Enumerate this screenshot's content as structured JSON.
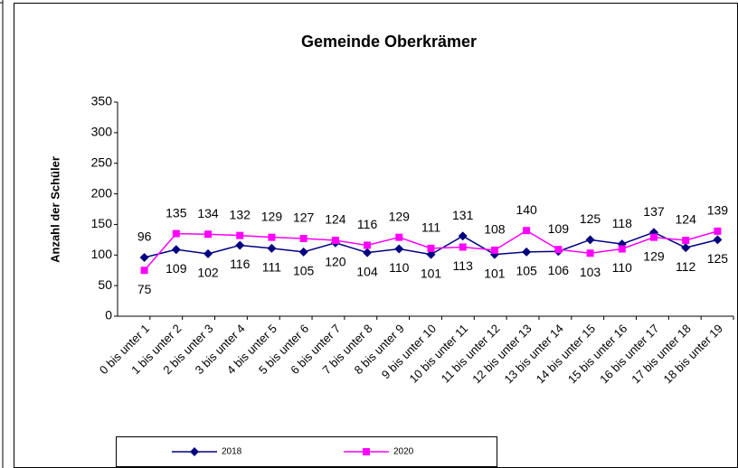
{
  "chart_data": {
    "type": "line",
    "title": "Gemeinde Oberkrämer",
    "y_label": "Anzahl der Schüler",
    "categories": [
      "0 bis unter 1",
      "1 bis unter 2",
      "2 bis unter 3",
      "3 bis unter 4",
      "4 bis unter 5",
      "5 bis unter 6",
      "6 bis unter 7",
      "7 bis unter 8",
      "8 bis unter 9",
      "9 bis unter 10",
      "10 bis unter 11",
      "11 bis unter 12",
      "12 bis unter 13",
      "13 bis unter 14",
      "14 bis unter 15",
      "15 bis unter 16",
      "16 bis unter 17",
      "17 bis unter 18",
      "18 bis unter 19"
    ],
    "series": [
      {
        "name": "2018",
        "color": "#000080",
        "marker": "diamond",
        "values": [
          96,
          109,
          102,
          116,
          111,
          105,
          120,
          104,
          110,
          101,
          131,
          101,
          105,
          106,
          125,
          118,
          137,
          112,
          125
        ]
      },
      {
        "name": "2020",
        "color": "#ff00ff",
        "marker": "square",
        "values": [
          75,
          135,
          134,
          132,
          129,
          127,
          124,
          116,
          129,
          111,
          113,
          108,
          140,
          109,
          103,
          110,
          129,
          124,
          139
        ]
      }
    ],
    "ylim": [
      0,
      350
    ],
    "yticks": [
      0,
      50,
      100,
      150,
      200,
      250,
      300,
      350
    ],
    "legend": "bottom"
  }
}
